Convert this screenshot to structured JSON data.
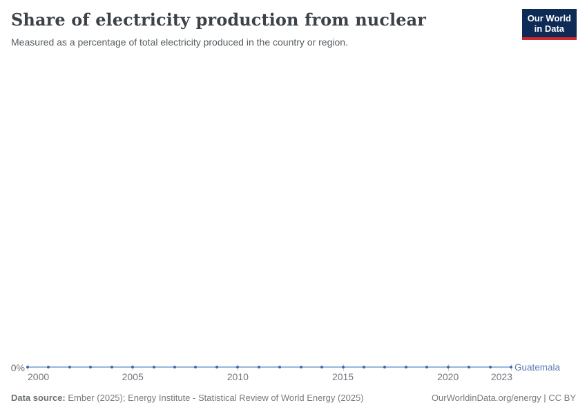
{
  "header": {
    "title": "Share of electricity production from nuclear",
    "subtitle": "Measured as a percentage of total electricity produced in the country or region.",
    "logo": {
      "line1": "Our World",
      "line2": "in Data",
      "background_color": "#0d2b56",
      "accent_color": "#d0282e"
    }
  },
  "chart_data": {
    "type": "line",
    "title": "Share of electricity production from nuclear",
    "subtitle": "Measured as a percentage of total electricity produced in the country or region.",
    "x": [
      2000,
      2001,
      2002,
      2003,
      2004,
      2005,
      2006,
      2007,
      2008,
      2009,
      2010,
      2011,
      2012,
      2013,
      2014,
      2015,
      2016,
      2017,
      2018,
      2019,
      2020,
      2021,
      2022,
      2023
    ],
    "series": [
      {
        "name": "Guatemala",
        "values": [
          0,
          0,
          0,
          0,
          0,
          0,
          0,
          0,
          0,
          0,
          0,
          0,
          0,
          0,
          0,
          0,
          0,
          0,
          0,
          0,
          0,
          0,
          0,
          0
        ],
        "dot_color": "#3e68a8",
        "line_color": "#9bb4dc",
        "label_color": "#5b7db5"
      }
    ],
    "xlabel": "",
    "ylabel": "",
    "y_tick_labels": [
      "0%"
    ],
    "x_tick_labels": [
      "2000",
      "2005",
      "2010",
      "2015",
      "2020",
      "2023"
    ],
    "x_tick_years": [
      2000,
      2005,
      2010,
      2015,
      2020,
      2023
    ],
    "xlim": [
      2000,
      2023
    ],
    "grid": false,
    "legend_position": "end-of-line",
    "markers": "dot-per-year"
  },
  "footer": {
    "source_label": "Data source:",
    "source_text": "Ember (2025); Energy Institute - Statistical Review of World Energy (2025)",
    "credit": "OurWorldinData.org/energy | CC BY"
  }
}
